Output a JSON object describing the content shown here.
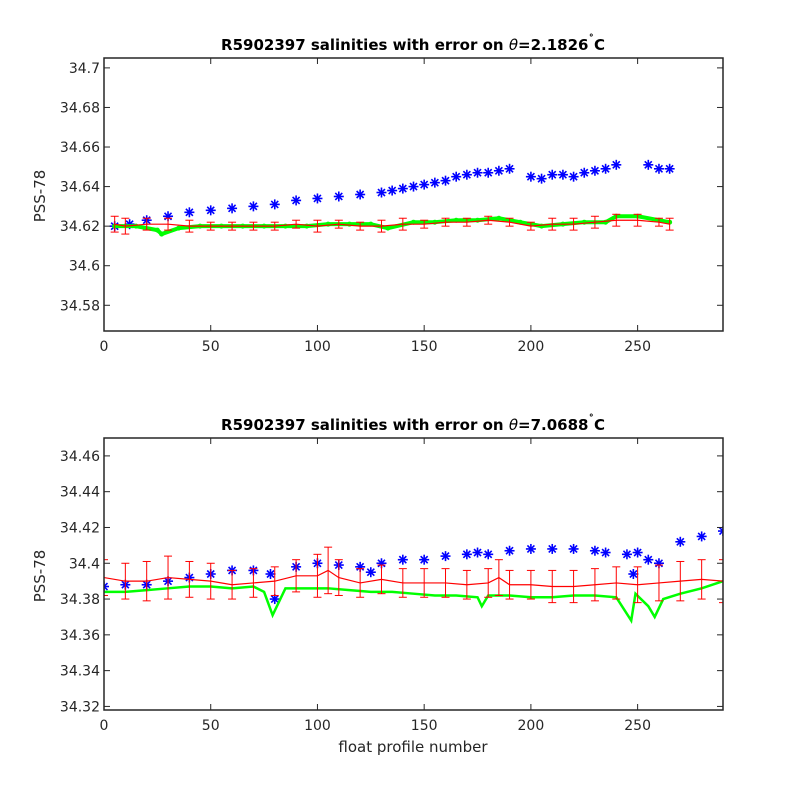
{
  "chart_data": [
    {
      "type": "scatter",
      "title_prefix": "R5902397 salinities with error on ",
      "title_theta": "θ",
      "title_value": "=2.1826",
      "title_degree": "˚",
      "title_unit": "C",
      "xlabel": "",
      "ylabel": "PSS-78",
      "xlim": [
        0,
        290
      ],
      "ylim": [
        34.567,
        34.705
      ],
      "xticks": [
        0,
        50,
        100,
        150,
        200,
        250
      ],
      "yticks": [
        34.58,
        34.6,
        34.62,
        34.64,
        34.66,
        34.68,
        34.7
      ],
      "ytick_labels": [
        "34.58",
        "34.6",
        "34.62",
        "34.64",
        "34.66",
        "34.68",
        "34.7"
      ],
      "grid": false,
      "series": [
        {
          "color": "#0000ff",
          "marker": "asterisk",
          "x": [
            5,
            12,
            20,
            30,
            40,
            50,
            60,
            70,
            80,
            90,
            100,
            110,
            120,
            130,
            135,
            140,
            145,
            150,
            155,
            160,
            165,
            170,
            175,
            180,
            185,
            190,
            200,
            205,
            210,
            215,
            220,
            225,
            230,
            235,
            240,
            255,
            260,
            265
          ],
          "y": [
            34.62,
            34.621,
            34.623,
            34.625,
            34.627,
            34.628,
            34.629,
            34.63,
            34.631,
            34.633,
            34.634,
            34.635,
            34.636,
            34.637,
            34.638,
            34.639,
            34.64,
            34.641,
            34.642,
            34.643,
            34.645,
            34.646,
            34.647,
            34.647,
            34.648,
            34.649,
            34.645,
            34.644,
            34.646,
            34.646,
            34.645,
            34.647,
            34.648,
            34.649,
            34.651,
            34.651,
            34.649,
            34.649
          ]
        },
        {
          "color": "#00ff00",
          "marker": "dot",
          "x": [
            5,
            15,
            25,
            27,
            35,
            45,
            55,
            65,
            75,
            85,
            95,
            105,
            115,
            125,
            133,
            145,
            155,
            165,
            175,
            185,
            195,
            205,
            215,
            225,
            235,
            240,
            250,
            260,
            265
          ],
          "y": [
            34.62,
            34.62,
            34.618,
            34.616,
            34.619,
            34.62,
            34.62,
            34.62,
            34.62,
            34.62,
            34.62,
            34.621,
            34.621,
            34.621,
            34.619,
            34.622,
            34.622,
            34.623,
            34.623,
            34.624,
            34.622,
            34.62,
            34.621,
            34.622,
            34.622,
            34.625,
            34.625,
            34.623,
            34.622
          ]
        },
        {
          "color": "#ff0000",
          "marker": "errorbar",
          "x": [
            5,
            10,
            20,
            30,
            40,
            50,
            60,
            70,
            80,
            90,
            100,
            110,
            120,
            130,
            140,
            150,
            160,
            170,
            180,
            190,
            200,
            210,
            220,
            230,
            240,
            250,
            260,
            265
          ],
          "y": [
            34.621,
            34.62,
            34.621,
            34.621,
            34.62,
            34.62,
            34.62,
            34.62,
            34.62,
            34.621,
            34.62,
            34.621,
            34.62,
            34.62,
            34.621,
            34.621,
            34.622,
            34.622,
            34.623,
            34.622,
            34.62,
            34.621,
            34.621,
            34.622,
            34.623,
            34.623,
            34.622,
            34.621
          ],
          "err": [
            0.004,
            0.004,
            0.003,
            0.003,
            0.003,
            0.002,
            0.002,
            0.002,
            0.002,
            0.002,
            0.003,
            0.002,
            0.002,
            0.003,
            0.003,
            0.002,
            0.002,
            0.002,
            0.002,
            0.002,
            0.002,
            0.003,
            0.003,
            0.003,
            0.003,
            0.003,
            0.002,
            0.003
          ]
        }
      ]
    },
    {
      "type": "scatter",
      "title_prefix": "R5902397 salinities with error on ",
      "title_theta": "θ",
      "title_value": "=7.0688",
      "title_degree": "˚",
      "title_unit": "C",
      "xlabel": "float profile number",
      "ylabel": "PSS-78",
      "xlim": [
        0,
        290
      ],
      "ylim": [
        34.318,
        34.47
      ],
      "xticks": [
        0,
        50,
        100,
        150,
        200,
        250
      ],
      "yticks": [
        34.32,
        34.34,
        34.36,
        34.38,
        34.4,
        34.42,
        34.44,
        34.46
      ],
      "ytick_labels": [
        "34.32",
        "34.34",
        "34.36",
        "34.38",
        "34.4",
        "34.42",
        "34.44",
        "34.46"
      ],
      "grid": false,
      "series": [
        {
          "color": "#0000ff",
          "marker": "asterisk",
          "x": [
            0,
            10,
            20,
            30,
            40,
            50,
            60,
            70,
            78,
            80,
            90,
            100,
            110,
            120,
            125,
            130,
            140,
            150,
            160,
            170,
            175,
            180,
            190,
            200,
            210,
            220,
            230,
            235,
            245,
            248,
            250,
            255,
            260,
            270,
            280,
            290
          ],
          "y": [
            34.387,
            34.388,
            34.388,
            34.39,
            34.392,
            34.394,
            34.396,
            34.396,
            34.394,
            34.38,
            34.398,
            34.4,
            34.399,
            34.398,
            34.395,
            34.4,
            34.402,
            34.402,
            34.404,
            34.405,
            34.406,
            34.405,
            34.407,
            34.408,
            34.408,
            34.408,
            34.407,
            34.406,
            34.405,
            34.394,
            34.406,
            34.402,
            34.4,
            34.412,
            34.415,
            34.418
          ]
        },
        {
          "color": "#00ff00",
          "marker": "line",
          "x": [
            0,
            10,
            20,
            30,
            40,
            50,
            60,
            70,
            75,
            79,
            85,
            95,
            105,
            115,
            125,
            135,
            145,
            155,
            165,
            175,
            177,
            180,
            190,
            200,
            210,
            220,
            230,
            240,
            247,
            249,
            255,
            258,
            262,
            270,
            280,
            290
          ],
          "y": [
            34.384,
            34.384,
            34.385,
            34.386,
            34.387,
            34.387,
            34.386,
            34.387,
            34.384,
            34.371,
            34.386,
            34.386,
            34.386,
            34.385,
            34.384,
            34.384,
            34.383,
            34.382,
            34.382,
            34.381,
            34.376,
            34.382,
            34.382,
            34.381,
            34.381,
            34.382,
            34.382,
            34.381,
            34.368,
            34.383,
            34.376,
            34.37,
            34.38,
            34.383,
            34.386,
            34.39
          ]
        },
        {
          "color": "#ff0000",
          "marker": "errorbar",
          "x": [
            0,
            10,
            20,
            30,
            40,
            50,
            60,
            70,
            80,
            90,
            100,
            105,
            110,
            120,
            130,
            140,
            150,
            160,
            170,
            180,
            185,
            190,
            200,
            210,
            220,
            230,
            240,
            250,
            260,
            270,
            280,
            290
          ],
          "y": [
            34.392,
            34.39,
            34.39,
            34.392,
            34.391,
            34.39,
            34.388,
            34.389,
            34.39,
            34.393,
            34.393,
            34.396,
            34.392,
            34.389,
            34.391,
            34.389,
            34.389,
            34.389,
            34.388,
            34.389,
            34.392,
            34.388,
            34.388,
            34.387,
            34.387,
            34.388,
            34.389,
            34.388,
            34.389,
            34.39,
            34.391,
            34.39
          ],
          "err": [
            0.01,
            0.01,
            0.011,
            0.012,
            0.01,
            0.01,
            0.008,
            0.008,
            0.008,
            0.009,
            0.012,
            0.013,
            0.01,
            0.008,
            0.008,
            0.008,
            0.008,
            0.008,
            0.008,
            0.008,
            0.01,
            0.008,
            0.008,
            0.009,
            0.009,
            0.009,
            0.009,
            0.01,
            0.01,
            0.011,
            0.011,
            0.012
          ]
        }
      ]
    }
  ]
}
